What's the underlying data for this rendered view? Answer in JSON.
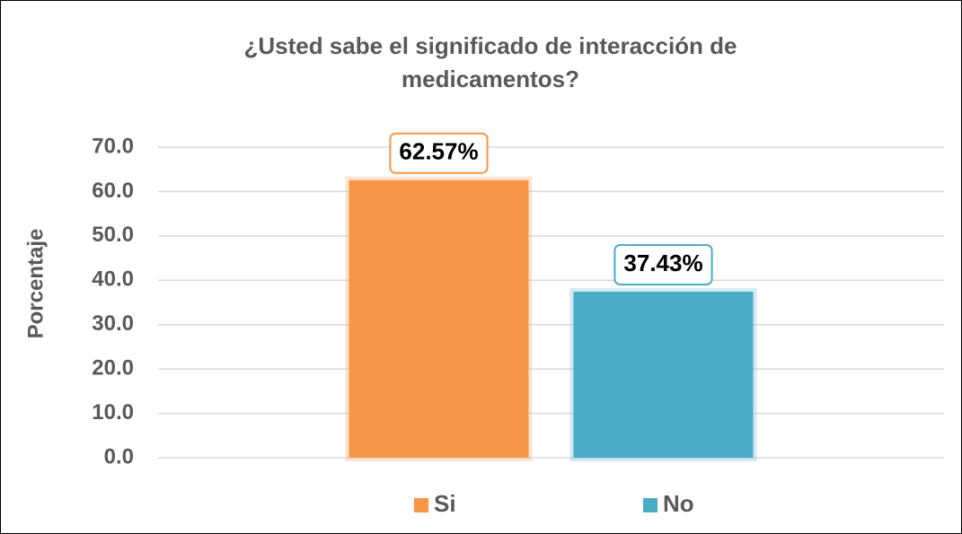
{
  "chart_data": {
    "type": "bar",
    "title": "¿Usted sabe el significado de interacción de medicamentos?",
    "y_label": "Porcentaje",
    "categories": [
      null
    ],
    "series": [
      {
        "name": "Si",
        "color": "#f79646",
        "values": [
          62.57
        ],
        "value_labels": [
          "62.57%"
        ]
      },
      {
        "name": "No",
        "color": "#4bacc6",
        "values": [
          37.43
        ],
        "value_labels": [
          "37.43%"
        ]
      }
    ],
    "ylim": [
      0,
      70
    ],
    "yticks": [
      {
        "value": 0,
        "label": "0.0"
      },
      {
        "value": 10,
        "label": "10.0"
      },
      {
        "value": 20,
        "label": "20.0"
      },
      {
        "value": 30,
        "label": "30.0"
      },
      {
        "value": 40,
        "label": "40.0"
      },
      {
        "value": 50,
        "label": "50.0"
      },
      {
        "value": 60,
        "label": "60.0"
      },
      {
        "value": 70,
        "label": "70.0"
      }
    ],
    "grid": true,
    "legend": "bottom"
  }
}
